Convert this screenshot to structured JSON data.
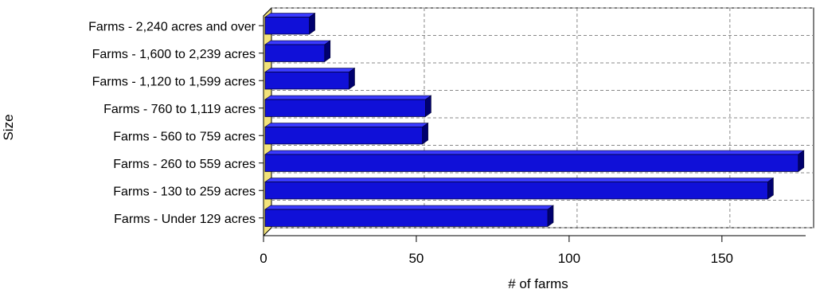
{
  "chart_data": {
    "type": "bar",
    "orientation": "horizontal",
    "style": "3d",
    "categories": [
      "Farms - 2,240 acres and over",
      "Farms - 1,600 to 2,239 acres",
      "Farms - 1,120 to 1,599 acres",
      "Farms - 760 to 1,119 acres",
      "Farms - 560 to 759 acres",
      "Farms - 260 to 559 acres",
      "Farms - 130 to 259 acres",
      "Farms - Under 129 acres"
    ],
    "values": [
      15,
      20,
      28,
      53,
      52,
      175,
      165,
      93
    ],
    "xlabel": "# of farms",
    "ylabel": "Size",
    "xlim": [
      0,
      180
    ],
    "xticks": [
      0,
      50,
      100,
      150
    ],
    "grid": true,
    "legend": "none",
    "colors": {
      "bar": "#1010d8",
      "bar_dark": "#00006e",
      "floor": "#f2e27a",
      "grid": "#888888"
    }
  }
}
